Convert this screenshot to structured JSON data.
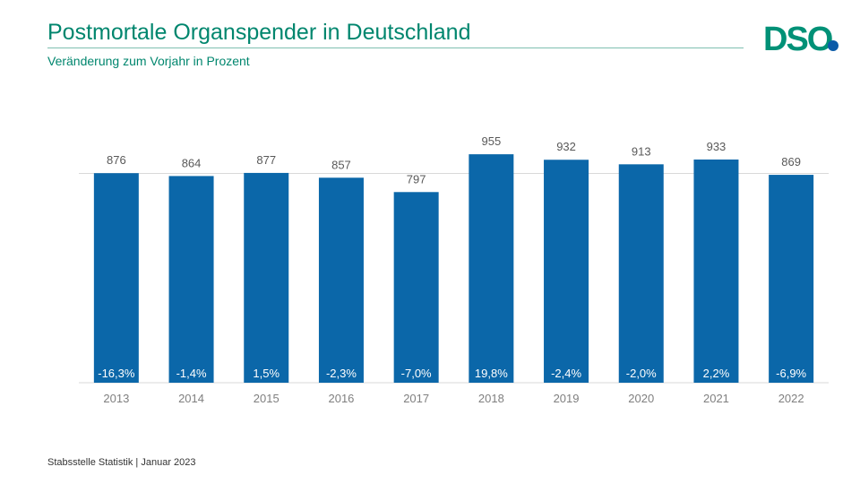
{
  "header": {
    "title": "Postmortale Organspender in Deutschland",
    "subtitle": "Veränderung zum Vorjahr in Prozent"
  },
  "logo": {
    "text": "DSO",
    "icon": "dso-logo",
    "green": "#009177",
    "blue": "#0b5ba8"
  },
  "footer": {
    "source": "Stabsstelle Statistik | Januar 2023"
  },
  "colors": {
    "bar": "#0b67a9",
    "title": "#00866e",
    "value_label": "#595959",
    "axis_label": "#7f7f7f"
  },
  "chart_data": {
    "type": "bar",
    "title": "Postmortale Organspender in Deutschland",
    "subtitle": "Veränderung zum Vorjahr in Prozent",
    "categories": [
      "2013",
      "2014",
      "2015",
      "2016",
      "2017",
      "2018",
      "2019",
      "2020",
      "2021",
      "2022"
    ],
    "values": [
      876,
      864,
      877,
      857,
      797,
      955,
      932,
      913,
      933,
      869
    ],
    "change_labels": [
      "-16,3%",
      "-1,4%",
      "1,5%",
      "-2,3%",
      "-7,0%",
      "19,8%",
      "-2,4%",
      "-2,0%",
      "2,2%",
      "-6,9%"
    ],
    "xlabel": "",
    "ylabel": "",
    "ylim": [
      0,
      1000
    ],
    "gridlines": [
      875
    ],
    "grid": false
  }
}
